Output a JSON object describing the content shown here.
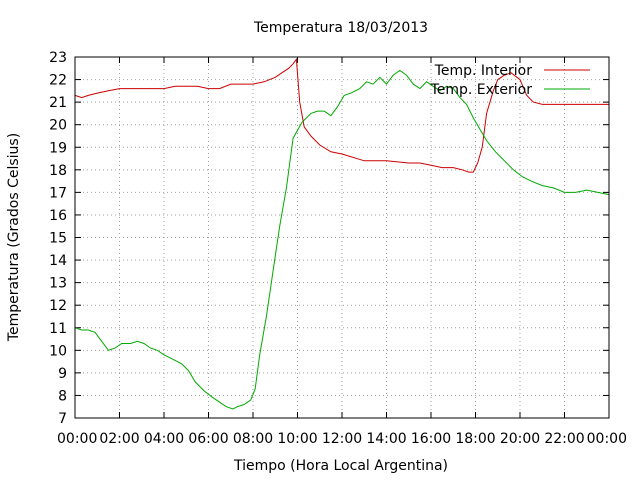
{
  "chart_data": {
    "type": "line",
    "title": "Temperatura 18/03/2013",
    "xlabel": "Tiempo (Hora Local Argentina)",
    "ylabel": "Temperatura (Grados Celsius)",
    "xlim": [
      0,
      24
    ],
    "ylim": [
      7,
      23
    ],
    "grid": true,
    "legend": "top-right",
    "x_ticks": [
      {
        "value": 0,
        "label": "00:00"
      },
      {
        "value": 2,
        "label": "02:00"
      },
      {
        "value": 4,
        "label": "04:00"
      },
      {
        "value": 6,
        "label": "06:00"
      },
      {
        "value": 8,
        "label": "08:00"
      },
      {
        "value": 10,
        "label": "10:00"
      },
      {
        "value": 12,
        "label": "12:00"
      },
      {
        "value": 14,
        "label": "14:00"
      },
      {
        "value": 16,
        "label": "16:00"
      },
      {
        "value": 18,
        "label": "18:00"
      },
      {
        "value": 20,
        "label": "20:00"
      },
      {
        "value": 22,
        "label": "22:00"
      },
      {
        "value": 24,
        "label": "00:00"
      }
    ],
    "y_ticks": [
      {
        "value": 7,
        "label": "7"
      },
      {
        "value": 8,
        "label": "8"
      },
      {
        "value": 9,
        "label": "9"
      },
      {
        "value": 10,
        "label": "10"
      },
      {
        "value": 11,
        "label": "11"
      },
      {
        "value": 12,
        "label": "12"
      },
      {
        "value": 13,
        "label": "13"
      },
      {
        "value": 14,
        "label": "14"
      },
      {
        "value": 15,
        "label": "15"
      },
      {
        "value": 16,
        "label": "16"
      },
      {
        "value": 17,
        "label": "17"
      },
      {
        "value": 18,
        "label": "18"
      },
      {
        "value": 19,
        "label": "19"
      },
      {
        "value": 20,
        "label": "20"
      },
      {
        "value": 21,
        "label": "21"
      },
      {
        "value": 22,
        "label": "22"
      },
      {
        "value": 23,
        "label": "23"
      }
    ],
    "series": [
      {
        "name": "Temp. Interior",
        "color": "#cc0000",
        "x": [
          0,
          0.3,
          0.6,
          1.0,
          1.5,
          2.0,
          2.5,
          3.0,
          3.5,
          4.0,
          4.5,
          5.0,
          5.5,
          6.0,
          6.5,
          7.0,
          7.5,
          8.0,
          8.5,
          9.0,
          9.3,
          9.6,
          9.8,
          9.95,
          10.1,
          10.3,
          10.6,
          11.0,
          11.5,
          12.0,
          13.0,
          14.0,
          15.0,
          15.5,
          16.0,
          16.5,
          17.0,
          17.4,
          17.7,
          17.9,
          18.1,
          18.3,
          18.5,
          18.8,
          19.0,
          19.3,
          19.6,
          20.0,
          20.3,
          20.6,
          21.0,
          22.0,
          23.0,
          24.0
        ],
        "values": [
          21.3,
          21.2,
          21.3,
          21.4,
          21.5,
          21.6,
          21.6,
          21.6,
          21.6,
          21.6,
          21.7,
          21.7,
          21.7,
          21.6,
          21.6,
          21.8,
          21.8,
          21.8,
          21.9,
          22.1,
          22.3,
          22.5,
          22.7,
          22.9,
          21.0,
          19.9,
          19.5,
          19.1,
          18.8,
          18.7,
          18.4,
          18.4,
          18.3,
          18.3,
          18.2,
          18.1,
          18.1,
          18.0,
          17.9,
          17.9,
          18.3,
          19.0,
          20.5,
          21.5,
          22.0,
          22.2,
          22.3,
          22.0,
          21.3,
          21.0,
          20.9,
          20.9,
          20.9,
          20.9
        ]
      },
      {
        "name": "Temp. Exterior",
        "color": "#00aa00",
        "x": [
          0,
          0.3,
          0.6,
          0.9,
          1.2,
          1.5,
          1.8,
          2.1,
          2.5,
          2.8,
          3.1,
          3.4,
          3.7,
          4.0,
          4.4,
          4.8,
          5.1,
          5.4,
          5.8,
          6.2,
          6.5,
          6.8,
          7.1,
          7.3,
          7.6,
          7.9,
          8.1,
          8.3,
          8.6,
          8.9,
          9.2,
          9.5,
          9.8,
          10.2,
          10.6,
          10.9,
          11.2,
          11.5,
          11.8,
          12.1,
          12.4,
          12.8,
          13.1,
          13.4,
          13.7,
          14.0,
          14.3,
          14.6,
          14.9,
          15.2,
          15.5,
          15.8,
          16.1,
          16.4,
          16.7,
          17.0,
          17.3,
          17.6,
          17.9,
          18.2,
          18.5,
          18.9,
          19.3,
          19.7,
          20.1,
          20.5,
          21.0,
          21.5,
          22.0,
          22.5,
          23.0,
          23.5,
          24.0
        ],
        "values": [
          11.0,
          10.9,
          10.9,
          10.8,
          10.4,
          10.0,
          10.1,
          10.3,
          10.3,
          10.4,
          10.3,
          10.1,
          10.0,
          9.8,
          9.6,
          9.4,
          9.1,
          8.6,
          8.2,
          7.9,
          7.7,
          7.5,
          7.4,
          7.5,
          7.6,
          7.8,
          8.3,
          9.8,
          11.5,
          13.5,
          15.5,
          17.2,
          19.4,
          20.1,
          20.5,
          20.6,
          20.6,
          20.4,
          20.8,
          21.3,
          21.4,
          21.6,
          21.9,
          21.8,
          22.1,
          21.8,
          22.2,
          22.4,
          22.2,
          21.8,
          21.6,
          21.9,
          21.7,
          21.5,
          21.7,
          21.6,
          21.2,
          20.9,
          20.3,
          19.8,
          19.3,
          18.8,
          18.4,
          18.0,
          17.7,
          17.5,
          17.3,
          17.2,
          17.0,
          17.0,
          17.1,
          17.0,
          16.9
        ]
      }
    ]
  }
}
